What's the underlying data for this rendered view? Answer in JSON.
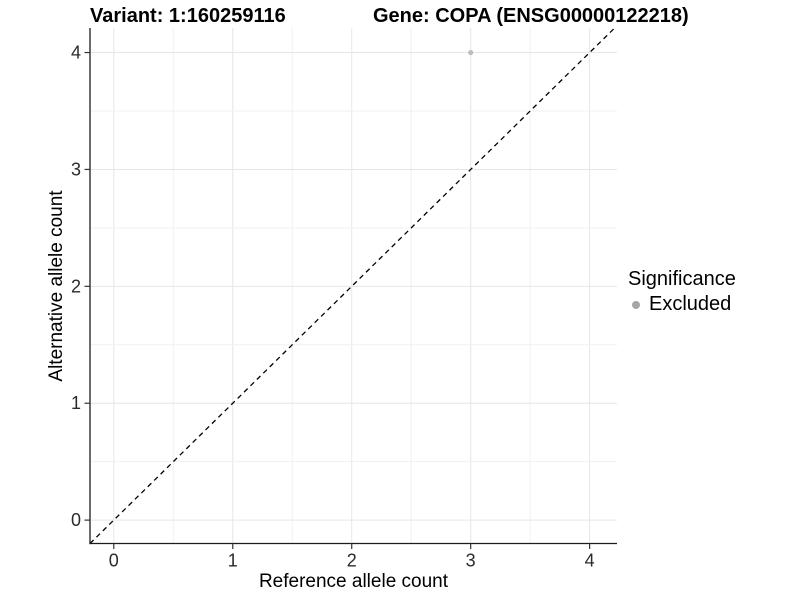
{
  "chart_data": {
    "type": "scatter",
    "title_left": "Variant: 1:160259116",
    "title_right": "Gene: COPA (ENSG00000122218)",
    "xlabel": "Reference allele count",
    "ylabel": "Alternative allele count",
    "xlim": [
      -0.2,
      4.23
    ],
    "ylim": [
      -0.2,
      4.21
    ],
    "x_ticks": [
      0,
      1,
      2,
      3,
      4
    ],
    "y_ticks": [
      0,
      1,
      2,
      3,
      4
    ],
    "minor_grid_step": 0.5,
    "grid": true,
    "points": [
      {
        "x": 3,
        "y": 4,
        "series": "Excluded"
      }
    ],
    "reference_line": {
      "type": "identity",
      "intercept": 0,
      "slope": 1,
      "style": "dashed",
      "color": "#000000"
    },
    "legend": {
      "title": "Significance",
      "position": "right",
      "items": [
        {
          "label": "Excluded",
          "marker": "circle",
          "color": "#a6a6a6"
        }
      ]
    },
    "colors": {
      "background": "#ffffff",
      "point": "#bdbdbd",
      "grid_major": "#e6e6e6",
      "grid_minor": "#f1f1f1",
      "axis_line": "#1c1c1c",
      "tick": "#333333",
      "tick_label": "#2b2b2b"
    }
  }
}
